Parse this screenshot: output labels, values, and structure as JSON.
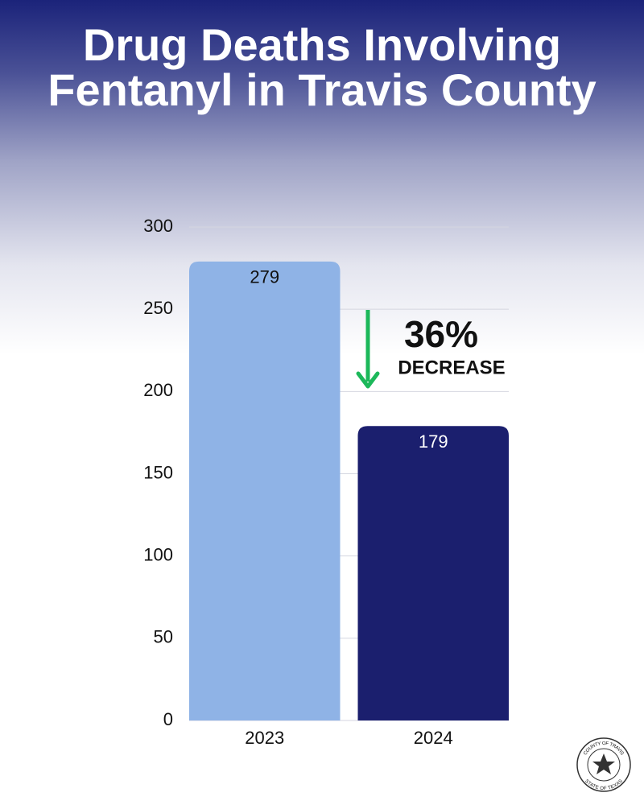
{
  "chart_data": {
    "type": "bar",
    "title": "Drug Deaths Involving Fentanyl in Travis County",
    "categories": [
      "2023",
      "2024"
    ],
    "values": [
      279,
      179
    ],
    "colors": [
      "#8fb3e6",
      "#1b1f6e"
    ],
    "ylim": [
      0,
      300
    ],
    "yticks": [
      0,
      50,
      100,
      150,
      200,
      250,
      300
    ],
    "grid": true,
    "annotation": {
      "value": "36%",
      "label": "DECREASE"
    },
    "seal": [
      "COUNTY OF TRAVIS",
      "STATE OF TEXAS"
    ]
  }
}
